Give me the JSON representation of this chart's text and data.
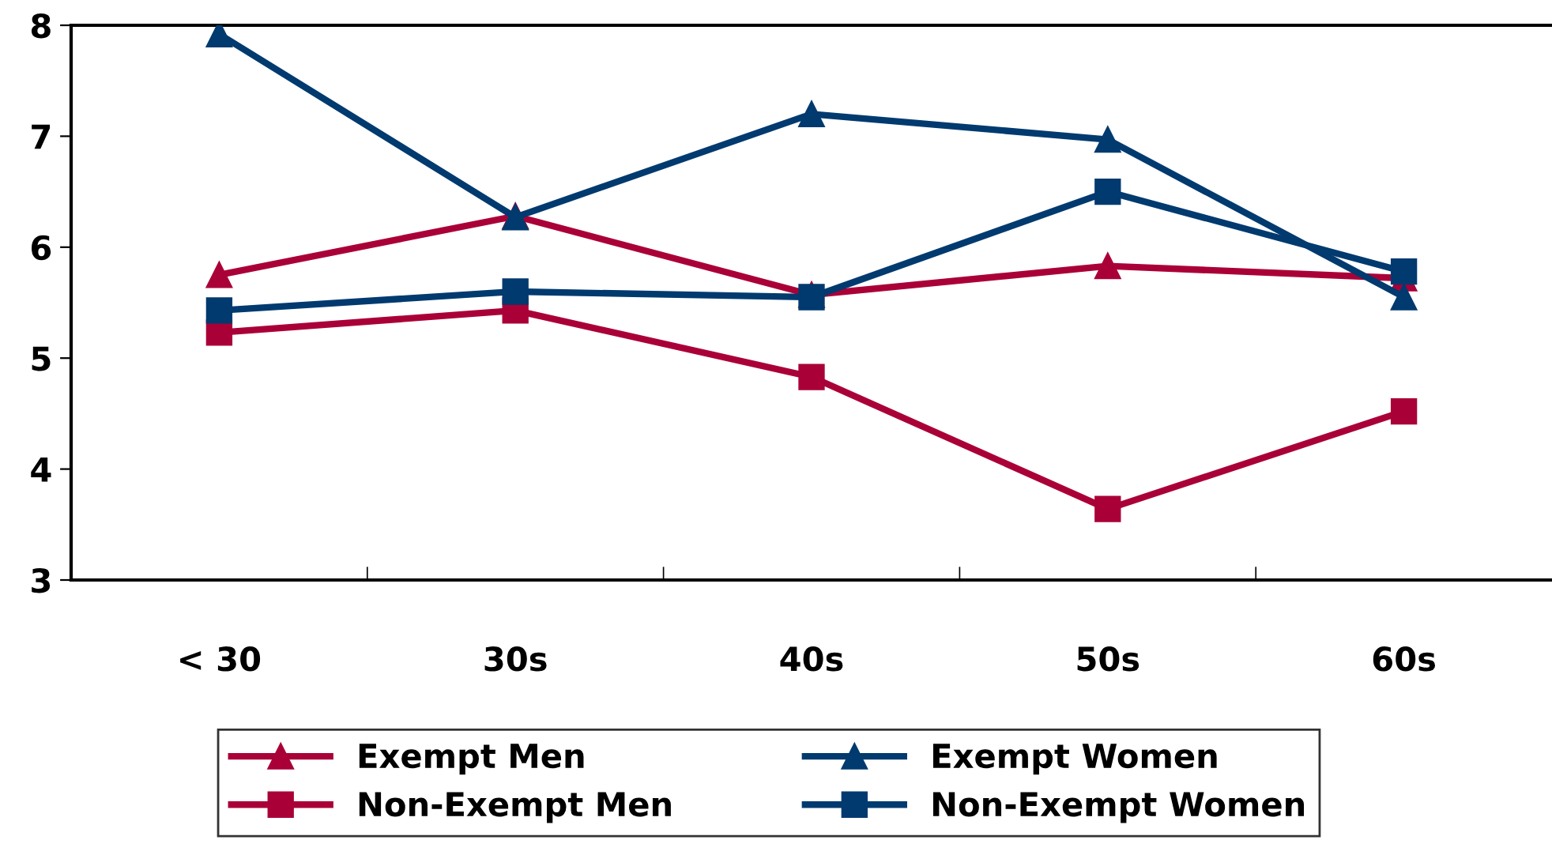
{
  "chart_data": {
    "type": "line",
    "categories": [
      "< 30",
      "30s",
      "40s",
      "50s",
      "60s"
    ],
    "ylim": [
      3,
      8
    ],
    "yticks": [
      3,
      4,
      5,
      6,
      7,
      8
    ],
    "grid": false,
    "legend": "bottom",
    "line_style": "solid",
    "series": [
      {
        "name": "Exempt Men",
        "color": "#aa0038",
        "marker": "triangle",
        "values": [
          5.75,
          6.28,
          5.57,
          5.83,
          5.72
        ]
      },
      {
        "name": "Exempt Women",
        "color": "#003a6f",
        "marker": "triangle",
        "values": [
          7.92,
          6.27,
          7.2,
          6.97,
          5.55
        ]
      },
      {
        "name": "Non-Exempt Men",
        "color": "#aa0038",
        "marker": "square",
        "values": [
          5.23,
          5.43,
          4.83,
          3.64,
          4.52
        ]
      },
      {
        "name": "Non-Exempt Women",
        "color": "#003a6f",
        "marker": "square",
        "values": [
          5.43,
          5.6,
          5.55,
          6.5,
          5.78
        ]
      }
    ]
  }
}
